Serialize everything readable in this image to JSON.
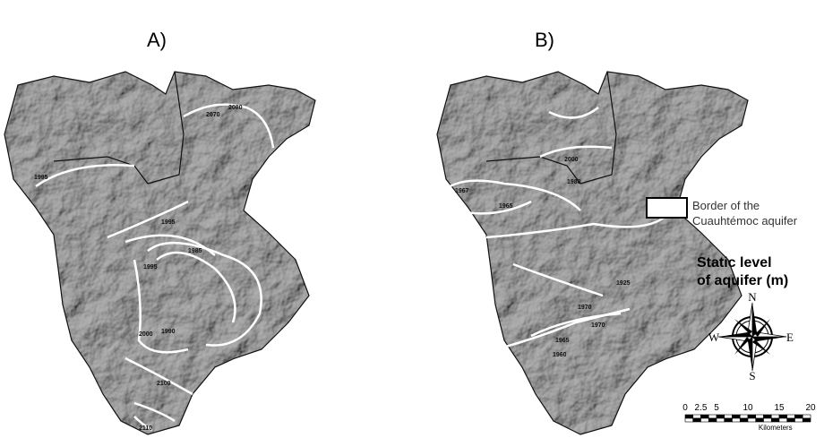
{
  "panels": [
    {
      "label": "A)",
      "contour_labels": [
        "2080",
        "2070",
        "1995",
        "1995",
        "1985",
        "1995",
        "1990",
        "2000",
        "2100",
        "2110"
      ]
    },
    {
      "label": "B)",
      "contour_labels": [
        "2000",
        "1980",
        "1967",
        "1965",
        "1970",
        "1925",
        "1970",
        "1965",
        "1960"
      ]
    }
  ],
  "legend": {
    "border_lines": [
      "Border of the",
      "Cuauhtémoc aquifer"
    ],
    "title_lines": [
      "Static level",
      "of aquifer (m)"
    ]
  },
  "compass": {
    "n": "N",
    "s": "S",
    "e": "E",
    "w": "W"
  },
  "scale_bar": {
    "ticks": [
      "0",
      "2.5",
      "5",
      "10",
      "15",
      "20"
    ],
    "unit": "Kilometers"
  }
}
